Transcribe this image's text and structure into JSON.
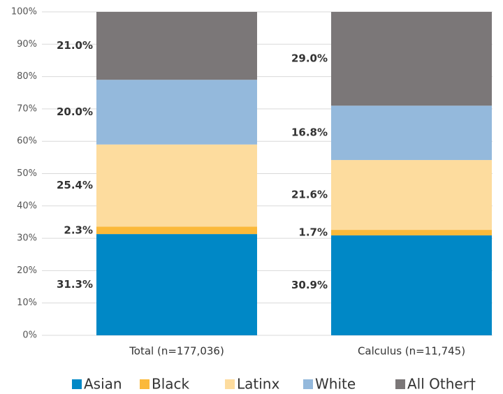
{
  "chart_data": {
    "type": "stacked_bar",
    "categories": [
      "Total (n=177,036)",
      "Calculus (n=11,745)"
    ],
    "series": [
      {
        "name": "Asian",
        "color": "#0088c6",
        "values": [
          31.3,
          30.9
        ],
        "value_labels": [
          "31.3%",
          "30.9%"
        ]
      },
      {
        "name": "Black",
        "color": "#fbb93a",
        "values": [
          2.3,
          1.7
        ],
        "value_labels": [
          "2.3%",
          "1.7%"
        ]
      },
      {
        "name": "Latinx",
        "color": "#fddc9e",
        "values": [
          25.4,
          21.6
        ],
        "value_labels": [
          "25.4%",
          "21.6%"
        ]
      },
      {
        "name": "White",
        "color": "#94b9dc",
        "values": [
          20.0,
          16.8
        ],
        "value_labels": [
          "20.0%",
          "16.8%"
        ]
      },
      {
        "name": "All Other†",
        "color": "#7b7778",
        "values": [
          21.0,
          29.0
        ],
        "value_labels": [
          "21.0%",
          "29.0%"
        ]
      }
    ],
    "ylim": [
      0,
      100
    ],
    "yticks": [
      {
        "value": 0,
        "label": "0%"
      },
      {
        "value": 10,
        "label": "10%"
      },
      {
        "value": 20,
        "label": "20%"
      },
      {
        "value": 30,
        "label": "30%"
      },
      {
        "value": 40,
        "label": "40%"
      },
      {
        "value": 50,
        "label": "50%"
      },
      {
        "value": 60,
        "label": "60%"
      },
      {
        "value": 70,
        "label": "70%"
      },
      {
        "value": 80,
        "label": "80%"
      },
      {
        "value": 90,
        "label": "90%"
      },
      {
        "value": 100,
        "label": "100%"
      }
    ],
    "grid": true,
    "legend": "bottom"
  }
}
